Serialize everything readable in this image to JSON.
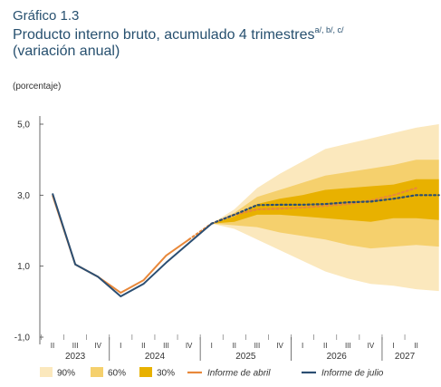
{
  "header": {
    "figure_label": "Gráfico 1.3",
    "title": "Producto interno bruto, acumulado 4 trimestres",
    "title_notes": "a/, b/, c/",
    "subtitle": "(variación anual)"
  },
  "chart_data": {
    "type": "line",
    "unit_label": "(porcentaje)",
    "ylim": [
      -1.0,
      5.0
    ],
    "yticks": [
      -1.0,
      1.0,
      3.0,
      5.0
    ],
    "ytick_labels": [
      "-1,0",
      "1,0",
      "3,0",
      "5,0"
    ],
    "grid": false,
    "legend_position": "bottom",
    "x_quarters": [
      "II",
      "III",
      "IV",
      "I",
      "II",
      "III",
      "IV",
      "I",
      "II",
      "III",
      "IV",
      "I",
      "II",
      "III",
      "IV",
      "I",
      "II"
    ],
    "x_years": [
      {
        "label": "2023",
        "start": 0,
        "end": 2
      },
      {
        "label": "2024",
        "start": 3,
        "end": 6
      },
      {
        "label": "2025",
        "start": 7,
        "end": 10
      },
      {
        "label": "2026",
        "start": 11,
        "end": 14
      },
      {
        "label": "2027",
        "start": 15,
        "end": 16
      }
    ],
    "series": [
      {
        "name": "Informe de abril",
        "color": "#e8883a",
        "x": [
          0,
          1,
          2,
          3,
          4,
          5,
          6
        ],
        "y": [
          3.0,
          1.05,
          0.7,
          0.25,
          0.6,
          1.3,
          1.75
        ],
        "forecast_x": [
          6,
          7,
          8,
          9,
          10,
          11,
          12,
          13,
          14,
          15,
          16
        ],
        "forecast_y": [
          1.75,
          2.2,
          2.45,
          2.6,
          2.62,
          2.65,
          2.7,
          2.75,
          2.85,
          3.0,
          3.2
        ]
      },
      {
        "name": "Informe de julio",
        "color": "#2b4e72",
        "x": [
          0,
          1,
          2,
          3,
          4,
          5,
          6,
          7
        ],
        "y": [
          3.05,
          1.05,
          0.7,
          0.15,
          0.5,
          1.1,
          1.65,
          2.2
        ],
        "forecast_x": [
          7,
          8,
          9,
          10,
          11,
          12,
          13,
          14,
          15,
          16,
          17
        ],
        "forecast_y": [
          2.2,
          2.45,
          2.72,
          2.73,
          2.73,
          2.75,
          2.8,
          2.82,
          2.9,
          3.0,
          3.0
        ]
      }
    ],
    "fan": {
      "x": [
        7,
        8,
        9,
        10,
        11,
        12,
        13,
        14,
        15,
        16,
        17
      ],
      "bands": [
        {
          "name": "90%",
          "color": "#fbe8bd",
          "upper": [
            2.2,
            2.6,
            3.2,
            3.6,
            3.95,
            4.3,
            4.45,
            4.6,
            4.75,
            4.9,
            5.0
          ],
          "lower": [
            2.2,
            2.05,
            1.75,
            1.45,
            1.15,
            0.85,
            0.65,
            0.5,
            0.45,
            0.35,
            0.3
          ]
        },
        {
          "name": "60%",
          "color": "#f5d06d",
          "upper": [
            2.2,
            2.5,
            2.95,
            3.15,
            3.35,
            3.55,
            3.65,
            3.75,
            3.85,
            4.0,
            4.0
          ],
          "lower": [
            2.2,
            2.15,
            2.1,
            1.95,
            1.85,
            1.75,
            1.6,
            1.5,
            1.55,
            1.6,
            1.55
          ]
        },
        {
          "name": "30%",
          "color": "#e8b100",
          "upper": [
            2.2,
            2.4,
            2.75,
            2.9,
            3.0,
            3.15,
            3.2,
            3.25,
            3.3,
            3.45,
            3.45
          ],
          "lower": [
            2.2,
            2.25,
            2.45,
            2.45,
            2.4,
            2.35,
            2.3,
            2.25,
            2.35,
            2.35,
            2.3
          ]
        }
      ]
    },
    "legend": [
      "90%",
      "60%",
      "30%",
      "Informe de abril",
      "Informe de julio"
    ]
  }
}
